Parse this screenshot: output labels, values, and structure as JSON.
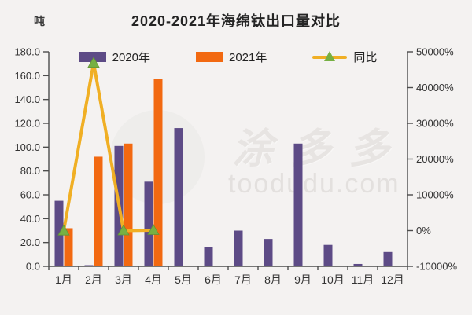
{
  "chart": {
    "title": "2020-2021年海绵钛出口量对比",
    "unit_label": "吨",
    "watermark": {
      "brand": "涂多多",
      "domain": "toodudu.com"
    }
  },
  "chart_data": {
    "type": "bar+line combo",
    "title": "2020-2021年海绵钛出口量对比",
    "categories": [
      "1月",
      "2月",
      "3月",
      "4月",
      "5月",
      "6月",
      "7月",
      "8月",
      "9月",
      "10月",
      "11月",
      "12月"
    ],
    "series": [
      {
        "name": "2020年",
        "type": "bar",
        "axis": "left",
        "color": "#5d4b86",
        "values": [
          55,
          0.2,
          101,
          71,
          116,
          16,
          30,
          23,
          103,
          18,
          2,
          12
        ]
      },
      {
        "name": "2021年",
        "type": "bar",
        "axis": "left",
        "color": "#f26911",
        "values": [
          32,
          92,
          103,
          157,
          null,
          null,
          null,
          null,
          null,
          null,
          null,
          null
        ]
      },
      {
        "name": "同比",
        "type": "line",
        "axis": "right",
        "color": "#f0af24",
        "marker": "triangle",
        "marker_color": "#76b043",
        "values": [
          -42,
          46900,
          2,
          121,
          null,
          null,
          null,
          null,
          null,
          null,
          null,
          null
        ]
      }
    ],
    "left_axis": {
      "label": "吨",
      "min": 0,
      "max": 180,
      "tick_step": 20,
      "tick_labels": [
        "180.0",
        "160.0",
        "140.0",
        "120.0",
        "100.0",
        "80.0",
        "60.0",
        "40.0",
        "20.0",
        "0.0"
      ]
    },
    "right_axis": {
      "label": "%",
      "min": -10000,
      "max": 50000,
      "tick_step": 10000,
      "tick_labels": [
        "50000%",
        "40000%",
        "30000%",
        "20000%",
        "10000%",
        "0%",
        "-10000%"
      ]
    },
    "legend_position": "top",
    "grid": false,
    "axis_color": "#4d4d4d",
    "text_color": "#333333"
  }
}
